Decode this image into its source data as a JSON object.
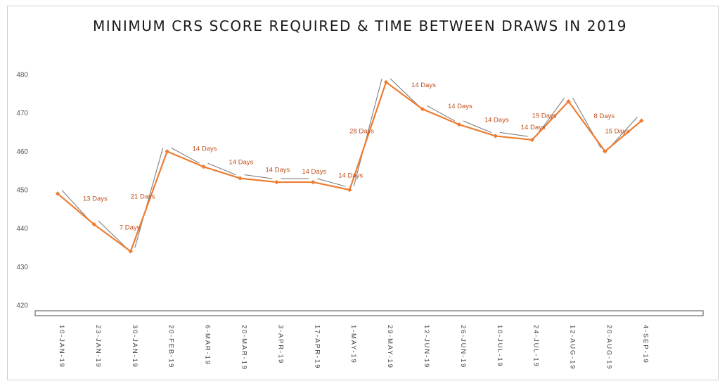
{
  "chart_data": {
    "type": "line",
    "title": "MINIMUM CRS SCORE REQUIRED & TIME BETWEEN DRAWS IN 2019",
    "xlabel": "",
    "ylabel": "",
    "ylim": [
      418,
      482
    ],
    "yticks": [
      420,
      430,
      440,
      450,
      460,
      470,
      480
    ],
    "grid": false,
    "legend": "none",
    "categories": [
      "10-JAN-19",
      "23-JAN-19",
      "30-JAN-19",
      "20-FEB-19",
      "6-MAR-19",
      "20-MAR-19",
      "3-APR-19",
      "17-APR-19",
      "1-MAY-19",
      "29-MAY-19",
      "12-JUN-19",
      "26-JUN-19",
      "10-JUL-19",
      "24-JUL-19",
      "12-AUG-19",
      "20-AUG-19",
      "4-SEP-19"
    ],
    "series": [
      {
        "values": [
          449,
          441,
          434,
          460,
          456,
          453,
          452,
          452,
          450,
          478,
          471,
          467,
          464,
          463,
          473,
          460,
          468
        ],
        "color": "#ed7d31"
      }
    ],
    "annotations": [
      "13 Days",
      "7 Days",
      "21 Days",
      "14 Days",
      "14 Days",
      "14 Days",
      "14 Days",
      "14 Days",
      "28 Days",
      "14 Days",
      "14 Days",
      "14 Days",
      "14 Days",
      "19 Days",
      "8 Days",
      "15 Days"
    ],
    "colors": {
      "line": "#ed7d31",
      "annotation_text": "#c0501e",
      "connector": "#808080"
    }
  }
}
